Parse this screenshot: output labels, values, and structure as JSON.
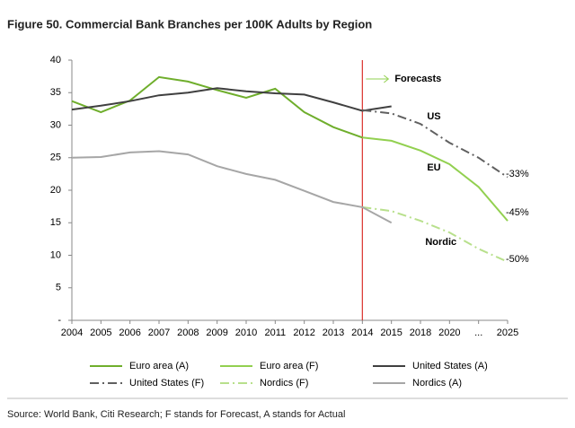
{
  "chart_data": {
    "type": "line",
    "title": "Figure 50. Commercial Bank Branches per 100K Adults by Region",
    "source": "Source: World Bank, Citi Research; F stands for Forecast, A stands for Actual",
    "categories": [
      "2004",
      "2005",
      "2006",
      "2007",
      "2008",
      "2009",
      "2010",
      "2011",
      "2012",
      "2013",
      "2014",
      "2015",
      "2018",
      "2020",
      "...",
      "2025"
    ],
    "ylim": [
      0,
      40
    ],
    "yticks": [
      {
        "value": 0,
        "label": "-"
      },
      5,
      10,
      15,
      20,
      25,
      30,
      35,
      40
    ],
    "forecast_start": "2014",
    "forecast_label": "Forecasts",
    "annotations": [
      "US",
      "EU",
      "Nordic",
      "-33%",
      "-45%",
      "-50%"
    ],
    "series": [
      {
        "name": "Euro area (A)",
        "color": "#6fae2c",
        "dash": "solid",
        "values": [
          33.7,
          32.0,
          33.8,
          37.4,
          36.7,
          35.4,
          34.2,
          35.6,
          32.0,
          29.7,
          28.1,
          null,
          null,
          null,
          null,
          null
        ]
      },
      {
        "name": "Euro area (F)",
        "color": "#92d050",
        "dash": "solid",
        "values": [
          null,
          null,
          null,
          null,
          null,
          null,
          null,
          null,
          null,
          null,
          28.1,
          27.6,
          26.1,
          24.0,
          20.5,
          15.3
        ]
      },
      {
        "name": "United States (A)",
        "color": "#404040",
        "dash": "solid",
        "values": [
          32.4,
          33.0,
          33.7,
          34.6,
          35.0,
          35.7,
          35.2,
          34.9,
          34.7,
          33.5,
          32.2,
          32.9,
          null,
          null,
          null,
          null
        ]
      },
      {
        "name": "United States (F)",
        "color": "#606060",
        "dash": "dashdot",
        "values": [
          null,
          null,
          null,
          null,
          null,
          null,
          null,
          null,
          null,
          null,
          32.3,
          31.8,
          30.2,
          27.3,
          25.0,
          22.0
        ]
      },
      {
        "name": "Nordics (F)",
        "color": "#b8e08c",
        "dash": "dashdot",
        "values": [
          null,
          null,
          null,
          null,
          null,
          null,
          null,
          null,
          null,
          null,
          17.4,
          16.8,
          15.3,
          13.5,
          11.0,
          9.0
        ]
      },
      {
        "name": "Nordics (A)",
        "color": "#a6a6a6",
        "dash": "solid",
        "values": [
          25.0,
          25.1,
          25.8,
          26.0,
          25.5,
          23.7,
          22.5,
          21.6,
          19.9,
          18.2,
          17.4,
          15.0,
          null,
          null,
          null,
          null
        ]
      }
    ]
  }
}
